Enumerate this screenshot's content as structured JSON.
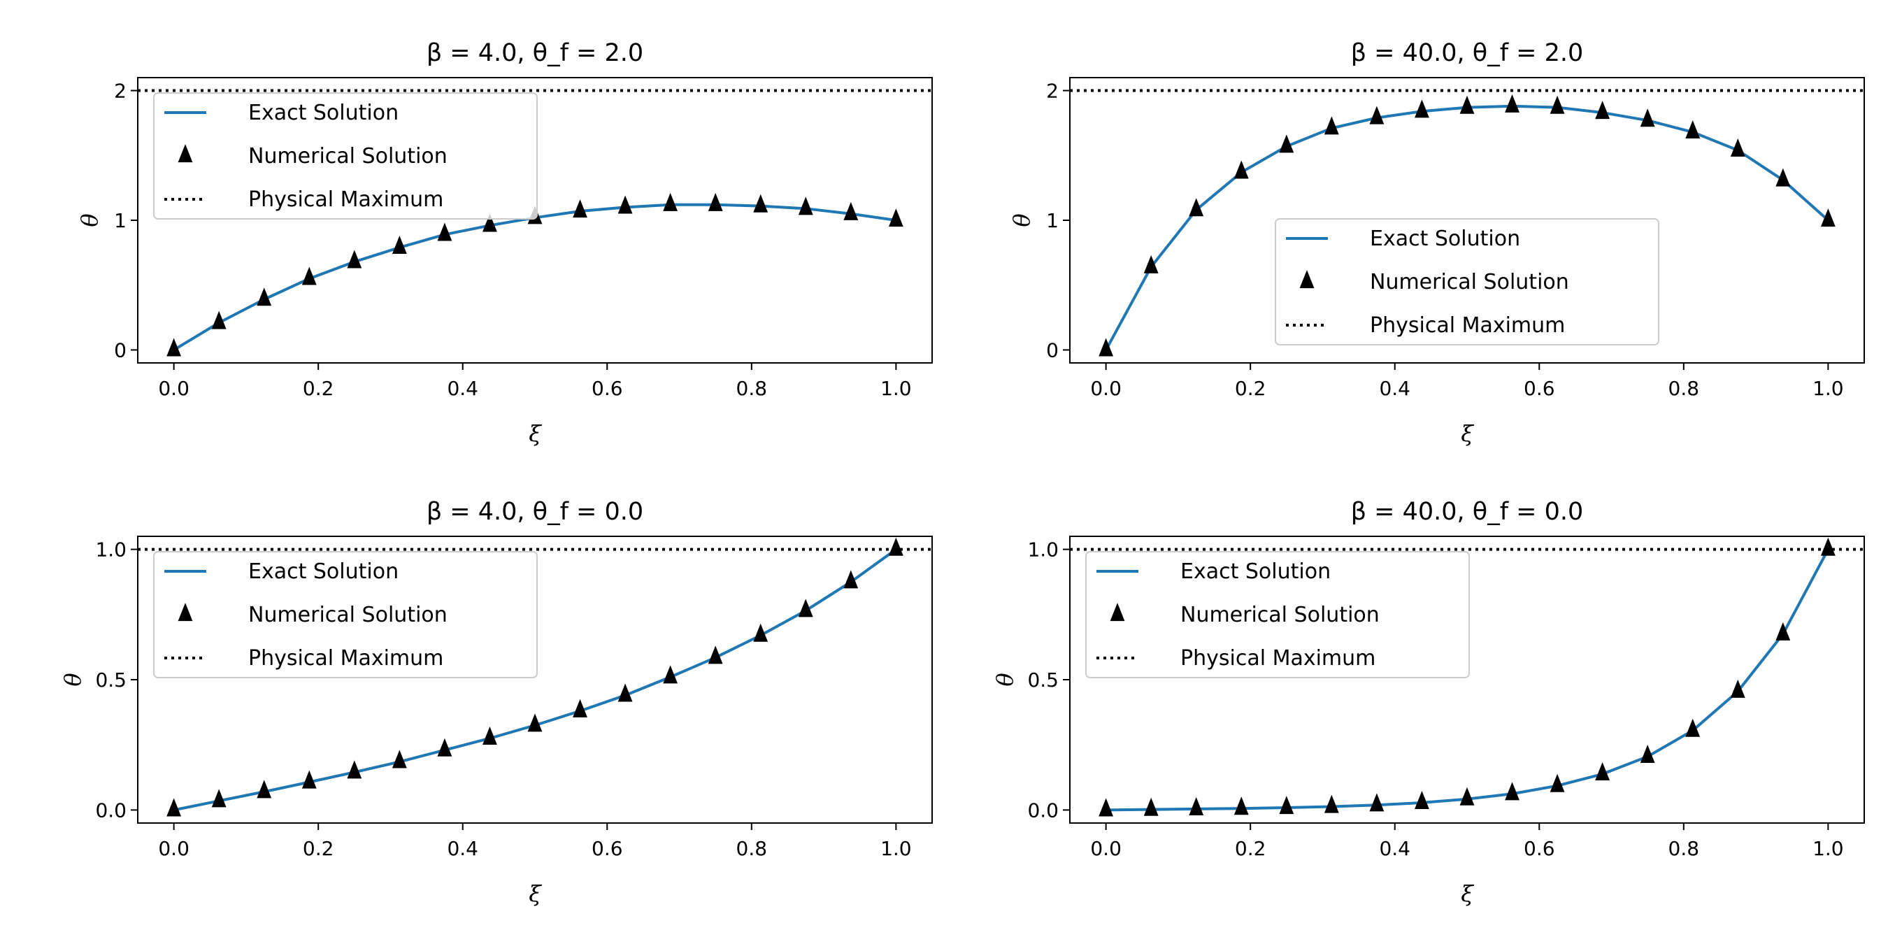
{
  "chart_data": [
    {
      "type": "line",
      "title": "β = 4.0, θ_f = 2.0",
      "xlabel": "ξ",
      "ylabel": "θ",
      "xlim": [
        -0.05,
        1.05
      ],
      "ylim": [
        -0.1,
        2.1
      ],
      "xticks": [
        "0.0",
        "0.2",
        "0.4",
        "0.6",
        "0.8",
        "1.0"
      ],
      "yticks": [
        "0",
        "1",
        "2"
      ],
      "ytick_values": [
        0,
        1,
        2
      ],
      "legend": "upper-left",
      "x": [
        0,
        0.0625,
        0.125,
        0.1875,
        0.25,
        0.3125,
        0.375,
        0.4375,
        0.5,
        0.5625,
        0.625,
        0.6875,
        0.75,
        0.8125,
        0.875,
        0.9375,
        1.0
      ],
      "series": [
        {
          "name": "Exact Solution",
          "style": "line",
          "color": "#1f77b4",
          "values": [
            0,
            0.21,
            0.39,
            0.55,
            0.68,
            0.79,
            0.89,
            0.96,
            1.02,
            1.07,
            1.1,
            1.12,
            1.12,
            1.11,
            1.09,
            1.05,
            1.0
          ]
        },
        {
          "name": "Numerical Solution",
          "style": "triangle",
          "color": "#000000",
          "values": [
            0,
            0.21,
            0.39,
            0.55,
            0.68,
            0.79,
            0.89,
            0.96,
            1.02,
            1.07,
            1.1,
            1.12,
            1.12,
            1.11,
            1.09,
            1.05,
            1.0
          ]
        },
        {
          "name": "Physical Maximum",
          "style": "dotted",
          "color": "#000000",
          "hline": 2.0
        }
      ]
    },
    {
      "type": "line",
      "title": "β = 40.0, θ_f = 2.0",
      "xlabel": "ξ",
      "ylabel": "θ",
      "xlim": [
        -0.05,
        1.05
      ],
      "ylim": [
        -0.1,
        2.1
      ],
      "xticks": [
        "0.0",
        "0.2",
        "0.4",
        "0.6",
        "0.8",
        "1.0"
      ],
      "yticks": [
        "0",
        "1",
        "2"
      ],
      "ytick_values": [
        0,
        1,
        2
      ],
      "legend": "lower-center",
      "x": [
        0,
        0.0625,
        0.125,
        0.1875,
        0.25,
        0.3125,
        0.375,
        0.4375,
        0.5,
        0.5625,
        0.625,
        0.6875,
        0.75,
        0.8125,
        0.875,
        0.9375,
        1.0
      ],
      "series": [
        {
          "name": "Exact Solution",
          "style": "line",
          "color": "#1f77b4",
          "values": [
            0,
            0.64,
            1.08,
            1.37,
            1.57,
            1.71,
            1.79,
            1.84,
            1.87,
            1.88,
            1.87,
            1.83,
            1.77,
            1.68,
            1.54,
            1.31,
            1.0
          ]
        },
        {
          "name": "Numerical Solution",
          "style": "triangle",
          "color": "#000000",
          "values": [
            0,
            0.64,
            1.08,
            1.37,
            1.57,
            1.71,
            1.79,
            1.84,
            1.87,
            1.88,
            1.87,
            1.83,
            1.77,
            1.68,
            1.54,
            1.31,
            1.0
          ]
        },
        {
          "name": "Physical Maximum",
          "style": "dotted",
          "color": "#000000",
          "hline": 2.0
        }
      ]
    },
    {
      "type": "line",
      "title": "β = 4.0, θ_f = 0.0",
      "xlabel": "ξ",
      "ylabel": "θ",
      "xlim": [
        -0.05,
        1.05
      ],
      "ylim": [
        -0.05,
        1.05
      ],
      "xticks": [
        "0.0",
        "0.2",
        "0.4",
        "0.6",
        "0.8",
        "1.0"
      ],
      "yticks": [
        "0.0",
        "0.5",
        "1.0"
      ],
      "ytick_values": [
        0,
        0.5,
        1
      ],
      "legend": "upper-left",
      "x": [
        0,
        0.0625,
        0.125,
        0.1875,
        0.25,
        0.3125,
        0.375,
        0.4375,
        0.5,
        0.5625,
        0.625,
        0.6875,
        0.75,
        0.8125,
        0.875,
        0.9375,
        1.0
      ],
      "series": [
        {
          "name": "Exact Solution",
          "style": "line",
          "color": "#1f77b4",
          "values": [
            0,
            0.035,
            0.07,
            0.107,
            0.145,
            0.185,
            0.23,
            0.275,
            0.325,
            0.38,
            0.44,
            0.51,
            0.585,
            0.67,
            0.765,
            0.875,
            1.0
          ]
        },
        {
          "name": "Numerical Solution",
          "style": "triangle",
          "color": "#000000",
          "values": [
            0,
            0.035,
            0.07,
            0.107,
            0.145,
            0.185,
            0.23,
            0.275,
            0.325,
            0.38,
            0.44,
            0.51,
            0.585,
            0.67,
            0.765,
            0.875,
            1.0
          ]
        },
        {
          "name": "Physical Maximum",
          "style": "dotted",
          "color": "#000000",
          "hline": 1.0
        }
      ]
    },
    {
      "type": "line",
      "title": "β = 40.0, θ_f = 0.0",
      "xlabel": "ξ",
      "ylabel": "θ",
      "xlim": [
        -0.05,
        1.05
      ],
      "ylim": [
        -0.05,
        1.05
      ],
      "xticks": [
        "0.0",
        "0.2",
        "0.4",
        "0.6",
        "0.8",
        "1.0"
      ],
      "yticks": [
        "0.0",
        "0.5",
        "1.0"
      ],
      "ytick_values": [
        0,
        0.5,
        1
      ],
      "legend": "upper-left",
      "x": [
        0,
        0.0625,
        0.125,
        0.1875,
        0.25,
        0.3125,
        0.375,
        0.4375,
        0.5,
        0.5625,
        0.625,
        0.6875,
        0.75,
        0.8125,
        0.875,
        0.9375,
        1.0
      ],
      "series": [
        {
          "name": "Exact Solution",
          "style": "line",
          "color": "#1f77b4",
          "values": [
            0,
            0.002,
            0.004,
            0.006,
            0.009,
            0.013,
            0.019,
            0.028,
            0.042,
            0.062,
            0.093,
            0.138,
            0.205,
            0.305,
            0.455,
            0.675,
            1.0
          ]
        },
        {
          "name": "Numerical Solution",
          "style": "triangle",
          "color": "#000000",
          "values": [
            0,
            0.002,
            0.004,
            0.006,
            0.009,
            0.013,
            0.019,
            0.028,
            0.042,
            0.062,
            0.093,
            0.138,
            0.205,
            0.305,
            0.455,
            0.675,
            1.0
          ]
        },
        {
          "name": "Physical Maximum",
          "style": "dotted",
          "color": "#000000",
          "hline": 1.0
        }
      ]
    }
  ]
}
